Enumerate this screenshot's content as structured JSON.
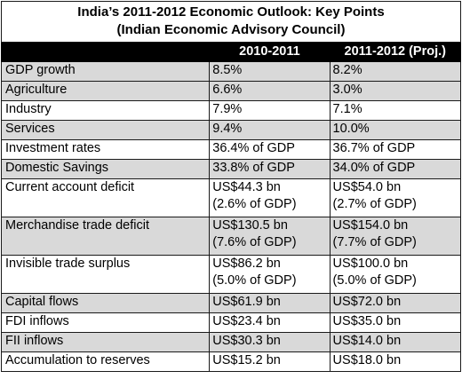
{
  "title_line1": "India’s 2011-2012  Economic Outlook: Key Points",
  "title_line2": "(Indian Economic Advisory Council)",
  "columns": [
    "",
    "2010-2011",
    "2011-2012  (Proj.)"
  ],
  "rows": [
    {
      "label": "GDP growth",
      "v2010": [
        "8.5%"
      ],
      "v2011": [
        "8.2%"
      ],
      "shade": true
    },
    {
      "label": "Agriculture",
      "v2010": [
        "6.6%"
      ],
      "v2011": [
        "3.0%"
      ],
      "shade": true
    },
    {
      "label": "Industry",
      "v2010": [
        "7.9%"
      ],
      "v2011": [
        "7.1%"
      ],
      "shade": false
    },
    {
      "label": "Services",
      "v2010": [
        "9.4%"
      ],
      "v2011": [
        "10.0%"
      ],
      "shade": true
    },
    {
      "label": "Investment rates",
      "v2010": [
        "36.4% of GDP"
      ],
      "v2011": [
        "36.7% of GDP"
      ],
      "shade": false
    },
    {
      "label": "Domestic Savings",
      "v2010": [
        "33.8% of GDP"
      ],
      "v2011": [
        "34.0% of GDP"
      ],
      "shade": true
    },
    {
      "label": "Current account deficit",
      "v2010": [
        "US$44.3 bn",
        "(2.6% of GDP)"
      ],
      "v2011": [
        "US$54.0 bn",
        "(2.7% of GDP)"
      ],
      "shade": false
    },
    {
      "label": "Merchandise trade deficit",
      "v2010": [
        "US$130.5 bn",
        "(7.6% of GDP)"
      ],
      "v2011": [
        "US$154.0 bn",
        "(7.7% of GDP)"
      ],
      "shade": true
    },
    {
      "label": "Invisible trade surplus",
      "v2010": [
        "US$86.2 bn",
        "(5.0% of GDP)"
      ],
      "v2011": [
        "US$100.0 bn",
        "(5.0% of GDP)"
      ],
      "shade": false
    },
    {
      "label": "Capital flows",
      "v2010": [
        "US$61.9 bn"
      ],
      "v2011": [
        "US$72.0 bn"
      ],
      "shade": true
    },
    {
      "label": "FDI inflows",
      "v2010": [
        "US$23.4 bn"
      ],
      "v2011": [
        "US$35.0 bn"
      ],
      "shade": false
    },
    {
      "label": "FII inflows",
      "v2010": [
        "US$30.3 bn"
      ],
      "v2011": [
        "US$14.0 bn"
      ],
      "shade": true
    },
    {
      "label": "Accumulation to reserves",
      "v2010": [
        "US$15.2 bn"
      ],
      "v2011": [
        "US$18.0 bn"
      ],
      "shade": false
    }
  ]
}
